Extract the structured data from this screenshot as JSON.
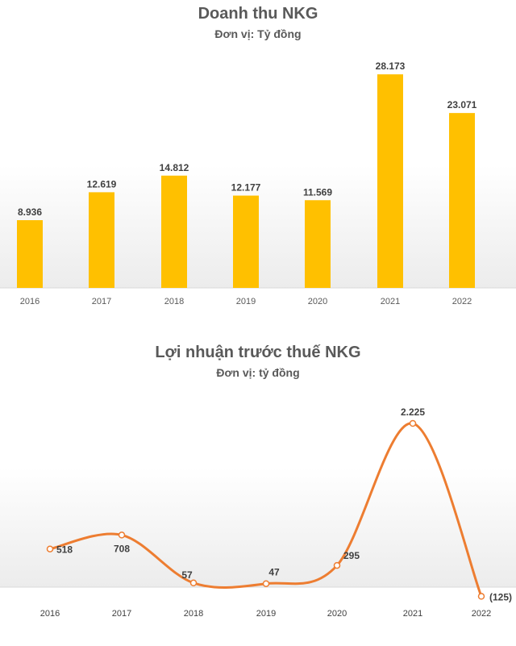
{
  "chart_data": [
    {
      "type": "bar",
      "title": "Doanh thu NKG",
      "subtitle": "Đơn vị: Tỷ đồng",
      "categories": [
        "2016",
        "2017",
        "2018",
        "2019",
        "2020",
        "2021",
        "2022"
      ],
      "values": [
        8936,
        12619,
        14812,
        12177,
        11569,
        28173,
        23071
      ],
      "value_labels": [
        "8.936",
        "12.619",
        "14.812",
        "12.177",
        "11.569",
        "28.173",
        "23.071"
      ],
      "ylim": [
        0,
        30000
      ],
      "grid": false,
      "bar_color": "#FFC000"
    },
    {
      "type": "line",
      "title": "Lợi nhuận trước thuế NKG",
      "subtitle": "Đơn vị: tỷ đồng",
      "categories": [
        "2016",
        "2017",
        "2018",
        "2019",
        "2020",
        "2021",
        "2022"
      ],
      "values": [
        518,
        708,
        57,
        47,
        295,
        2225,
        -125
      ],
      "value_labels": [
        "518",
        "708",
        "57",
        "47",
        "295",
        "2.225",
        "(125)"
      ],
      "smooth": true,
      "grid": false,
      "line_color": "#ED7D31"
    }
  ]
}
